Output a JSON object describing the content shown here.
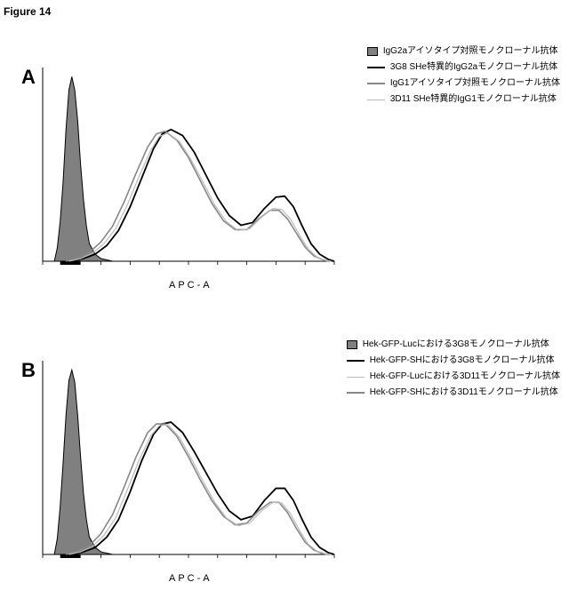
{
  "figure_title": "Figure 14",
  "axis_label": "APC-A",
  "background_color": "#ffffff",
  "text_color": "#000000",
  "panelA": {
    "label": "A",
    "legend": [
      {
        "kind": "box",
        "fill": "#808080",
        "stroke": "#000000",
        "text": "IgG2aアイソタイプ対照モノクローナル抗体"
      },
      {
        "kind": "line",
        "color": "#000000",
        "width": 2,
        "text": "3G8 SHe特異的IgG2aモノクローナル抗体"
      },
      {
        "kind": "line",
        "color": "#888888",
        "width": 2,
        "text": "IgG1アイソタイプ対照モノクローナル抗体"
      },
      {
        "kind": "line-thin",
        "color": "#bbbbbb",
        "width": 1,
        "text": "3D11 SHe特異的IgG1モノクローナル抗体"
      }
    ],
    "histograms": {
      "x_range": [
        0,
        100
      ],
      "filled": {
        "fill": "#808080",
        "stroke": "#000000",
        "points": [
          [
            4,
            0
          ],
          [
            5,
            15
          ],
          [
            6,
            45
          ],
          [
            7,
            90
          ],
          [
            8,
            150
          ],
          [
            9,
            195
          ],
          [
            10,
            210
          ],
          [
            11,
            195
          ],
          [
            12,
            160
          ],
          [
            13,
            110
          ],
          [
            14,
            70
          ],
          [
            15,
            40
          ],
          [
            16,
            20
          ],
          [
            18,
            8
          ],
          [
            20,
            3
          ],
          [
            24,
            0
          ]
        ]
      },
      "curves": [
        {
          "stroke": "#000000",
          "width": 1.8,
          "points": [
            [
              10,
              0
            ],
            [
              14,
              3
            ],
            [
              18,
              8
            ],
            [
              22,
              18
            ],
            [
              26,
              35
            ],
            [
              30,
              62
            ],
            [
              34,
              95
            ],
            [
              38,
              128
            ],
            [
              41,
              145
            ],
            [
              44,
              150
            ],
            [
              48,
              143
            ],
            [
              52,
              124
            ],
            [
              56,
              98
            ],
            [
              60,
              72
            ],
            [
              64,
              52
            ],
            [
              68,
              41
            ],
            [
              72,
              44
            ],
            [
              76,
              60
            ],
            [
              80,
              73
            ],
            [
              83,
              74
            ],
            [
              86,
              62
            ],
            [
              89,
              40
            ],
            [
              92,
              20
            ],
            [
              95,
              8
            ],
            [
              98,
              2
            ],
            [
              100,
              0
            ]
          ]
        },
        {
          "stroke": "#888888",
          "width": 1.6,
          "points": [
            [
              8,
              0
            ],
            [
              12,
              4
            ],
            [
              16,
              10
            ],
            [
              20,
              22
            ],
            [
              24,
              40
            ],
            [
              28,
              68
            ],
            [
              32,
              100
            ],
            [
              36,
              130
            ],
            [
              39,
              145
            ],
            [
              42,
              148
            ],
            [
              46,
              138
            ],
            [
              50,
              118
            ],
            [
              54,
              92
            ],
            [
              58,
              66
            ],
            [
              62,
              46
            ],
            [
              66,
              36
            ],
            [
              70,
              36
            ],
            [
              74,
              48
            ],
            [
              78,
              58
            ],
            [
              81,
              58
            ],
            [
              84,
              48
            ],
            [
              87,
              32
            ],
            [
              90,
              16
            ],
            [
              93,
              6
            ],
            [
              96,
              2
            ],
            [
              98,
              0
            ]
          ]
        },
        {
          "stroke": "#bbbbbb",
          "width": 1.2,
          "points": [
            [
              9,
              0
            ],
            [
              13,
              3
            ],
            [
              17,
              9
            ],
            [
              21,
              20
            ],
            [
              25,
              37
            ],
            [
              29,
              64
            ],
            [
              33,
              96
            ],
            [
              37,
              126
            ],
            [
              40,
              142
            ],
            [
              43,
              146
            ],
            [
              47,
              136
            ],
            [
              51,
              115
            ],
            [
              55,
              90
            ],
            [
              59,
              64
            ],
            [
              63,
              45
            ],
            [
              67,
              35
            ],
            [
              71,
              37
            ],
            [
              75,
              50
            ],
            [
              79,
              60
            ],
            [
              82,
              59
            ],
            [
              85,
              48
            ],
            [
              88,
              30
            ],
            [
              91,
              14
            ],
            [
              94,
              5
            ],
            [
              97,
              1
            ],
            [
              99,
              0
            ]
          ]
        }
      ]
    }
  },
  "panelB": {
    "label": "B",
    "legend": [
      {
        "kind": "box",
        "fill": "#808080",
        "stroke": "#000000",
        "text": "Hek-GFP-Lucにおける3G8モノクローナル抗体"
      },
      {
        "kind": "line",
        "color": "#000000",
        "width": 2,
        "text": "Hek-GFP-SHにおける3G8モノクローナル抗体"
      },
      {
        "kind": "line-thin",
        "color": "#bbbbbb",
        "width": 1,
        "text": "Hek-GFP-Lucにおける3D11モノクローナル抗体"
      },
      {
        "kind": "line",
        "color": "#888888",
        "width": 2,
        "text": "Hek-GFP-SHにおける3D11モノクローナル抗体"
      }
    ],
    "histograms": {
      "x_range": [
        0,
        100
      ],
      "filled": {
        "fill": "#808080",
        "stroke": "#000000",
        "points": [
          [
            4,
            0
          ],
          [
            5,
            18
          ],
          [
            6,
            55
          ],
          [
            7,
            105
          ],
          [
            8,
            160
          ],
          [
            9,
            200
          ],
          [
            10,
            212
          ],
          [
            11,
            198
          ],
          [
            12,
            160
          ],
          [
            13,
            112
          ],
          [
            14,
            70
          ],
          [
            15,
            40
          ],
          [
            16,
            20
          ],
          [
            18,
            8
          ],
          [
            20,
            3
          ],
          [
            24,
            0
          ]
        ]
      },
      "curves": [
        {
          "stroke": "#000000",
          "width": 1.8,
          "points": [
            [
              10,
              0
            ],
            [
              14,
              3
            ],
            [
              18,
              8
            ],
            [
              22,
              20
            ],
            [
              26,
              40
            ],
            [
              30,
              72
            ],
            [
              34,
              108
            ],
            [
              38,
              138
            ],
            [
              41,
              150
            ],
            [
              44,
              152
            ],
            [
              48,
              140
            ],
            [
              52,
              118
            ],
            [
              56,
              94
            ],
            [
              60,
              70
            ],
            [
              64,
              50
            ],
            [
              68,
              40
            ],
            [
              72,
              44
            ],
            [
              76,
              62
            ],
            [
              80,
              76
            ],
            [
              83,
              76
            ],
            [
              86,
              62
            ],
            [
              89,
              40
            ],
            [
              92,
              20
            ],
            [
              95,
              8
            ],
            [
              98,
              2
            ],
            [
              100,
              0
            ]
          ]
        },
        {
          "stroke": "#888888",
          "width": 1.6,
          "points": [
            [
              8,
              0
            ],
            [
              12,
              4
            ],
            [
              16,
              10
            ],
            [
              20,
              24
            ],
            [
              24,
              46
            ],
            [
              28,
              78
            ],
            [
              32,
              112
            ],
            [
              36,
              140
            ],
            [
              39,
              150
            ],
            [
              42,
              150
            ],
            [
              46,
              136
            ],
            [
              50,
              112
            ],
            [
              54,
              86
            ],
            [
              58,
              62
            ],
            [
              62,
              44
            ],
            [
              66,
              34
            ],
            [
              70,
              36
            ],
            [
              74,
              50
            ],
            [
              78,
              60
            ],
            [
              81,
              60
            ],
            [
              84,
              48
            ],
            [
              87,
              30
            ],
            [
              90,
              14
            ],
            [
              93,
              5
            ],
            [
              96,
              1
            ],
            [
              98,
              0
            ]
          ]
        },
        {
          "stroke": "#bbbbbb",
          "width": 1.2,
          "points": [
            [
              9,
              0
            ],
            [
              13,
              3
            ],
            [
              17,
              9
            ],
            [
              21,
              22
            ],
            [
              25,
              42
            ],
            [
              29,
              74
            ],
            [
              33,
              108
            ],
            [
              37,
              136
            ],
            [
              40,
              148
            ],
            [
              43,
              149
            ],
            [
              47,
              134
            ],
            [
              51,
              110
            ],
            [
              55,
              84
            ],
            [
              59,
              60
            ],
            [
              63,
              42
            ],
            [
              67,
              33
            ],
            [
              71,
              36
            ],
            [
              75,
              50
            ],
            [
              79,
              60
            ],
            [
              82,
              59
            ],
            [
              85,
              47
            ],
            [
              88,
              28
            ],
            [
              91,
              12
            ],
            [
              94,
              4
            ],
            [
              97,
              1
            ],
            [
              99,
              0
            ]
          ]
        }
      ]
    }
  }
}
